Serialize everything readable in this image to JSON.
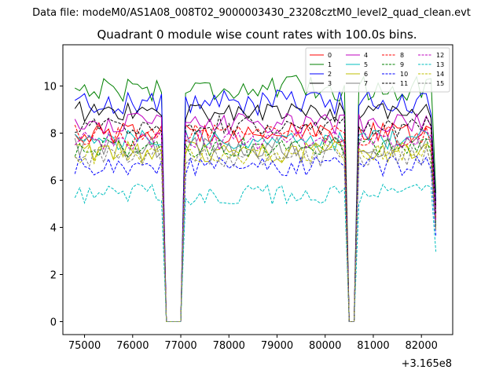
{
  "chart_data": {
    "type": "line",
    "suptitle": "Data file: modeM0/AS1A08_008T02_9000003430_23208cztM0_level2_quad_clean.evt",
    "title": "Quadrant 0 module wise count rates with 100.0s bins.",
    "xlabel": "",
    "ylabel": "",
    "x_offset_label": "+3.165e8",
    "xlim": [
      74550,
      82650
    ],
    "ylim": [
      -0.55,
      11.75
    ],
    "xticks": [
      75000,
      76000,
      77000,
      78000,
      79000,
      80000,
      81000,
      82000
    ],
    "xtick_labels": [
      "75000",
      "76000",
      "77000",
      "78000",
      "79000",
      "80000",
      "81000",
      "82000"
    ],
    "yticks": [
      0,
      2,
      4,
      6,
      8,
      10
    ],
    "ytick_labels": [
      "0",
      "2",
      "4",
      "6",
      "8",
      "10"
    ],
    "segments": [
      {
        "x0": 74800,
        "x1": 76600
      },
      {
        "x0": 77100,
        "x1": 80400
      },
      {
        "x0": 80700,
        "x1": 82300
      }
    ],
    "edge_x": [
      76700,
      76800,
      76900,
      77000,
      80500,
      80600,
      82300
    ],
    "legend": {
      "placement": "top-right",
      "columns": 4
    },
    "series": [
      {
        "name": "0",
        "color": "#ff0000",
        "dashed": false,
        "mean": 8.0
      },
      {
        "name": "1",
        "color": "#008000",
        "dashed": false,
        "mean": 9.9
      },
      {
        "name": "2",
        "color": "#0000ff",
        "dashed": false,
        "mean": 9.3
      },
      {
        "name": "3",
        "color": "#000000",
        "dashed": false,
        "mean": 8.9
      },
      {
        "name": "4",
        "color": "#bf00bf",
        "dashed": false,
        "mean": 8.4
      },
      {
        "name": "5",
        "color": "#00bfbf",
        "dashed": false,
        "mean": 7.7
      },
      {
        "name": "6",
        "color": "#bfbf00",
        "dashed": false,
        "mean": 7.2
      },
      {
        "name": "7",
        "color": "#808080",
        "dashed": false,
        "mean": 7.4
      },
      {
        "name": "8",
        "color": "#ff0000",
        "dashed": true,
        "mean": 7.9
      },
      {
        "name": "9",
        "color": "#008000",
        "dashed": true,
        "mean": 7.4
      },
      {
        "name": "10",
        "color": "#0000ff",
        "dashed": true,
        "mean": 6.6
      },
      {
        "name": "11",
        "color": "#000000",
        "dashed": true,
        "mean": 8.3
      },
      {
        "name": "12",
        "color": "#bf00bf",
        "dashed": true,
        "mean": 7.7
      },
      {
        "name": "13",
        "color": "#00bfbf",
        "dashed": true,
        "mean": 5.4
      },
      {
        "name": "14",
        "color": "#bfbf00",
        "dashed": true,
        "mean": 7.1
      },
      {
        "name": "15",
        "color": "#808080",
        "dashed": true,
        "mean": 7.0
      }
    ]
  }
}
